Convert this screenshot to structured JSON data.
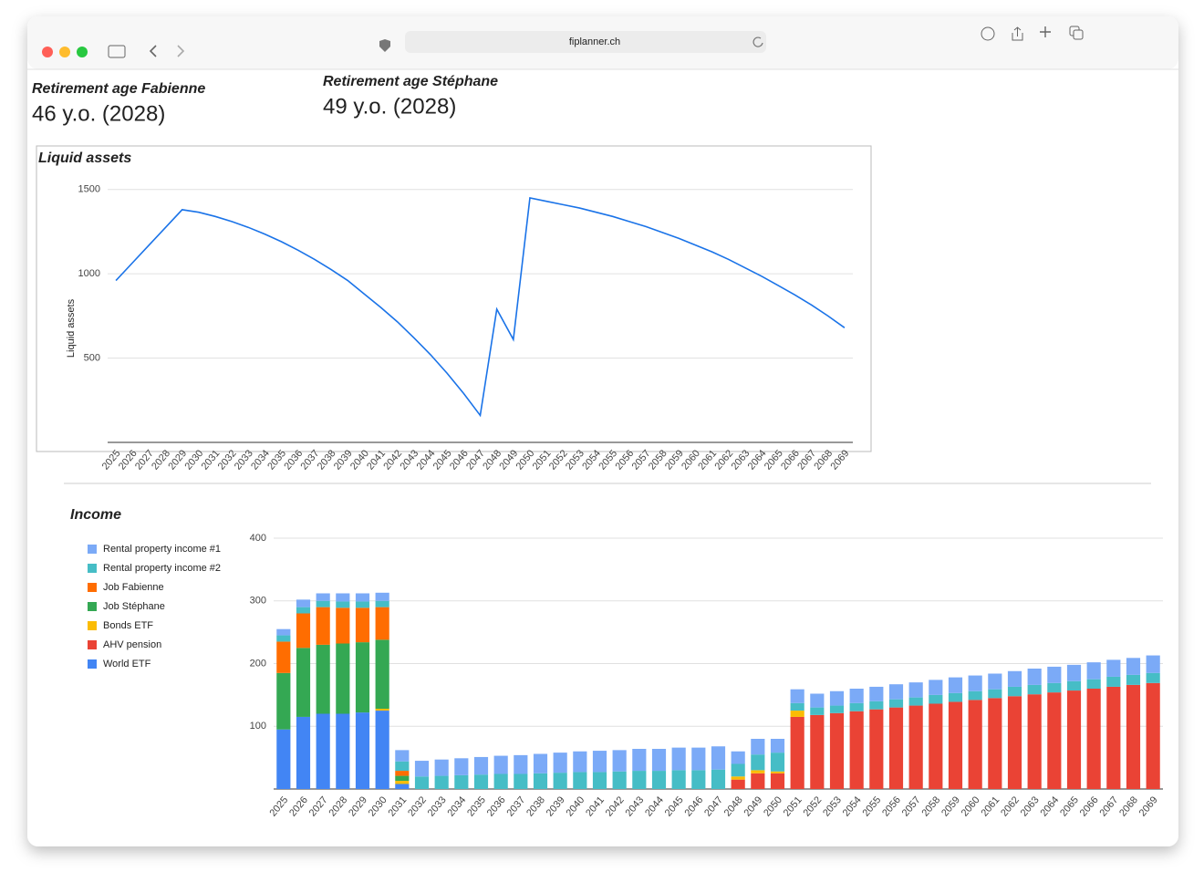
{
  "browser": {
    "url": "fiplanner.ch"
  },
  "kpis": [
    {
      "label": "Retirement age Fabienne",
      "value": "46 y.o. (2028)"
    },
    {
      "label": "Retirement age Stéphane",
      "value": "49 y.o. (2028)"
    }
  ],
  "chart_data": [
    {
      "type": "line",
      "title": "Liquid assets",
      "y_label": "Liquid assets",
      "color": "#1a73e8",
      "grid": true,
      "categories": [
        "2025",
        "2026",
        "2027",
        "2028",
        "2029",
        "2030",
        "2031",
        "2032",
        "2033",
        "2034",
        "2035",
        "2036",
        "2037",
        "2038",
        "2039",
        "2040",
        "2041",
        "2042",
        "2043",
        "2044",
        "2045",
        "2046",
        "2047",
        "2048",
        "2049",
        "2050",
        "2051",
        "2052",
        "2053",
        "2054",
        "2055",
        "2056",
        "2057",
        "2058",
        "2059",
        "2060",
        "2061",
        "2062",
        "2063",
        "2064",
        "2065",
        "2066",
        "2067",
        "2068",
        "2069"
      ],
      "values": [
        960,
        1065,
        1170,
        1275,
        1380,
        1365,
        1340,
        1310,
        1275,
        1235,
        1190,
        1140,
        1085,
        1025,
        960,
        880,
        800,
        715,
        620,
        520,
        410,
        290,
        160,
        790,
        610,
        1450,
        1430,
        1410,
        1390,
        1365,
        1340,
        1310,
        1280,
        1245,
        1210,
        1170,
        1130,
        1085,
        1035,
        985,
        930,
        875,
        815,
        750,
        680
      ],
      "ylim": [
        0,
        1650
      ],
      "yticks": [
        500,
        1000,
        1500
      ]
    },
    {
      "type": "bar",
      "stacked": true,
      "title": "Income",
      "grid": true,
      "legend": "left",
      "categories": [
        "2025",
        "2026",
        "2027",
        "2028",
        "2029",
        "2030",
        "2031",
        "2032",
        "2033",
        "2034",
        "2035",
        "2036",
        "2037",
        "2038",
        "2039",
        "2040",
        "2041",
        "2042",
        "2043",
        "2044",
        "2045",
        "2046",
        "2047",
        "2048",
        "2049",
        "2050",
        "2051",
        "2052",
        "2053",
        "2054",
        "2055",
        "2056",
        "2057",
        "2058",
        "2059",
        "2060",
        "2061",
        "2062",
        "2063",
        "2064",
        "2065",
        "2066",
        "2067",
        "2068",
        "2069"
      ],
      "ylim": [
        0,
        400
      ],
      "yticks": [
        100,
        200,
        300,
        400
      ],
      "series": [
        {
          "name": "Rental property income #1",
          "color": "#7baaf7",
          "values": [
            10,
            12,
            12,
            13,
            13,
            13,
            18,
            25,
            26,
            27,
            28,
            29,
            30,
            31,
            32,
            33,
            34,
            34,
            35,
            35,
            36,
            36,
            37,
            20,
            25,
            22,
            22,
            22,
            23,
            23,
            23,
            24,
            24,
            24,
            25,
            25,
            25,
            25,
            26,
            26,
            26,
            27,
            27,
            27,
            28
          ]
        },
        {
          "name": "Rental property income #2",
          "color": "#46bdc6",
          "values": [
            10,
            10,
            10,
            10,
            10,
            10,
            15,
            20,
            21,
            22,
            23,
            24,
            24,
            25,
            26,
            27,
            27,
            28,
            29,
            29,
            30,
            30,
            31,
            20,
            25,
            30,
            12,
            12,
            12,
            13,
            13,
            13,
            13,
            14,
            14,
            14,
            14,
            15,
            15,
            15,
            15,
            15,
            16,
            16,
            16
          ]
        },
        {
          "name": "Job Fabienne",
          "color": "#ff6d01",
          "values": [
            50,
            55,
            60,
            57,
            55,
            52,
            8,
            0,
            0,
            0,
            0,
            0,
            0,
            0,
            0,
            0,
            0,
            0,
            0,
            0,
            0,
            0,
            0,
            0,
            0,
            0,
            0,
            0,
            0,
            0,
            0,
            0,
            0,
            0,
            0,
            0,
            0,
            0,
            0,
            0,
            0,
            0,
            0,
            0,
            0
          ]
        },
        {
          "name": "Job Stéphane",
          "color": "#34a853",
          "values": [
            90,
            110,
            110,
            112,
            112,
            110,
            8,
            0,
            0,
            0,
            0,
            0,
            0,
            0,
            0,
            0,
            0,
            0,
            0,
            0,
            0,
            0,
            0,
            0,
            0,
            0,
            0,
            0,
            0,
            0,
            0,
            0,
            0,
            0,
            0,
            0,
            0,
            0,
            0,
            0,
            0,
            0,
            0,
            0,
            0
          ]
        },
        {
          "name": "Bonds ETF",
          "color": "#fbbc04",
          "values": [
            0,
            0,
            0,
            0,
            0,
            3,
            5,
            0,
            0,
            0,
            0,
            0,
            0,
            0,
            0,
            0,
            0,
            0,
            0,
            0,
            0,
            0,
            0,
            5,
            5,
            3,
            10,
            0,
            0,
            0,
            0,
            0,
            0,
            0,
            0,
            0,
            0,
            0,
            0,
            0,
            0,
            0,
            0,
            0,
            0
          ]
        },
        {
          "name": "AHV pension",
          "color": "#ea4335",
          "values": [
            0,
            0,
            0,
            0,
            0,
            0,
            0,
            0,
            0,
            0,
            0,
            0,
            0,
            0,
            0,
            0,
            0,
            0,
            0,
            0,
            0,
            0,
            0,
            15,
            25,
            25,
            115,
            118,
            121,
            124,
            127,
            130,
            133,
            136,
            139,
            142,
            145,
            148,
            151,
            154,
            157,
            160,
            163,
            166,
            169
          ]
        },
        {
          "name": "World ETF",
          "color": "#4285f4",
          "values": [
            95,
            115,
            120,
            120,
            122,
            125,
            8,
            0,
            0,
            0,
            0,
            0,
            0,
            0,
            0,
            0,
            0,
            0,
            0,
            0,
            0,
            0,
            0,
            0,
            0,
            0,
            0,
            0,
            0,
            0,
            0,
            0,
            0,
            0,
            0,
            0,
            0,
            0,
            0,
            0,
            0,
            0,
            0,
            0,
            0
          ]
        }
      ]
    }
  ]
}
